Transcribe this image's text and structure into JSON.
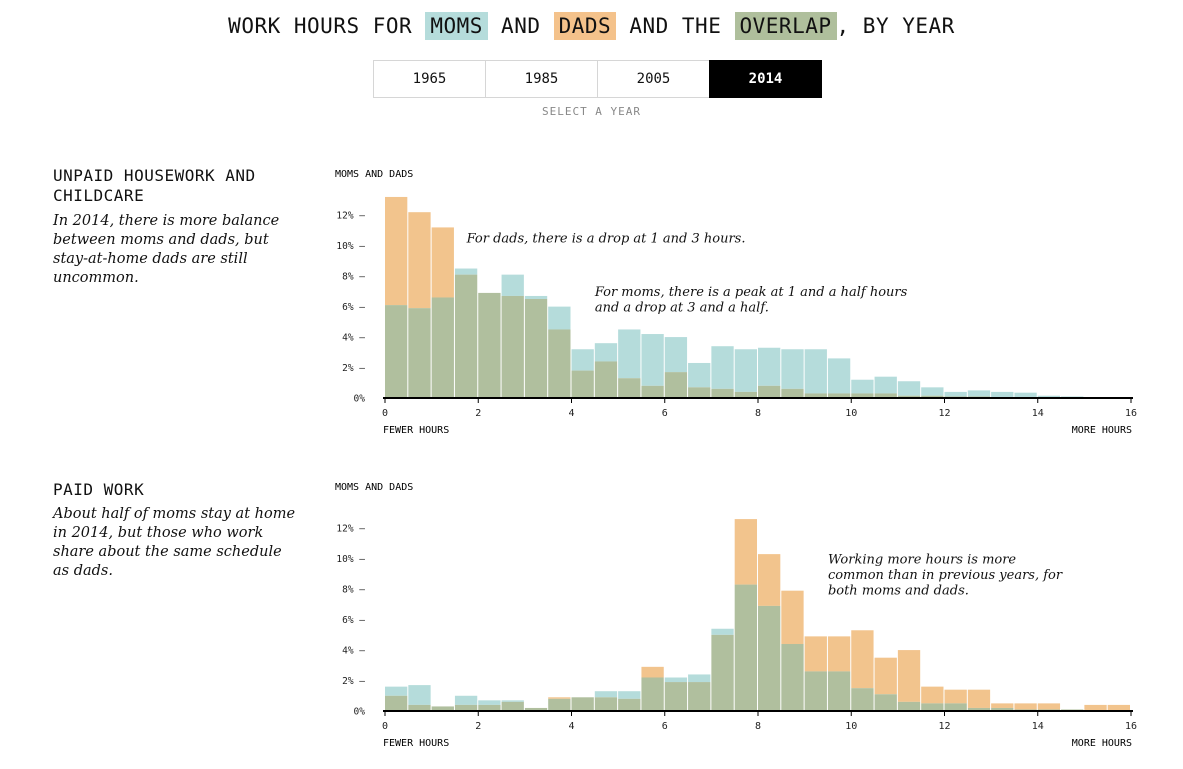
{
  "header": {
    "title_parts": [
      {
        "text": "WORK HOURS FOR ",
        "color": ""
      },
      {
        "text": "MOMS",
        "color": "#b5dcdb"
      },
      {
        "text": " AND ",
        "color": ""
      },
      {
        "text": "DADS",
        "color": "#f4c28b"
      },
      {
        "text": " AND THE ",
        "color": ""
      },
      {
        "text": "OVERLAP",
        "color": "#afbf9c"
      },
      {
        "text": ", BY YEAR",
        "color": ""
      }
    ],
    "years": [
      "1965",
      "1985",
      "2005",
      "2014"
    ],
    "selected_year": "2014",
    "hint": "SELECT A YEAR"
  },
  "colors": {
    "moms": "#b5dcdb",
    "dads": "#f2c48d",
    "overlap": "#b0bf9e"
  },
  "sections": {
    "housework": {
      "title": "UNPAID HOUSEWORK AND CHILDCARE",
      "description": "In 2014, there is more balance between moms and dads, but stay-at-home dads are still uncommon."
    },
    "paid": {
      "title": "PAID WORK",
      "description": "About half of moms stay at home in 2014, but those who work share about the same schedule as dads."
    }
  },
  "chart_data": [
    {
      "type": "bar",
      "chart_label": "MOMS AND DADS",
      "x_start_label": "FEWER HOURS",
      "x_end_label": "MORE HOURS",
      "xlim": [
        0,
        16
      ],
      "ylim": [
        0,
        13
      ],
      "bin_width": 0.5,
      "xticks": [
        0,
        2,
        4,
        6,
        8,
        10,
        12,
        14,
        16
      ],
      "yticks": [
        0,
        2,
        4,
        6,
        8,
        10,
        12
      ],
      "ytick_labels": [
        "0%",
        "2% –",
        "4% –",
        "6% –",
        "8% –",
        "10% –",
        "12% –"
      ],
      "annotations": [
        {
          "lines": [
            "For dads, there is a drop at 1 and 3 hours."
          ],
          "x": 1.75,
          "y": 10.2
        },
        {
          "lines": [
            "For moms, there is a peak at 1 and a half hours",
            "and a drop at 3 and a half."
          ],
          "x": 4.5,
          "y": 6.7
        }
      ],
      "series": [
        {
          "name": "MOMS",
          "values": [
            6.1,
            5.9,
            6.6,
            8.5,
            6.9,
            8.1,
            6.7,
            6.0,
            3.2,
            3.6,
            4.5,
            4.2,
            4.0,
            2.3,
            3.4,
            3.2,
            3.3,
            3.2,
            3.2,
            2.6,
            1.2,
            1.4,
            1.1,
            0.7,
            0.4,
            0.5,
            0.4,
            0.35,
            0.15,
            0.1,
            0.05,
            0.05
          ]
        },
        {
          "name": "DADS",
          "values": [
            13.2,
            12.2,
            11.2,
            8.1,
            6.9,
            6.7,
            6.5,
            4.5,
            1.8,
            2.4,
            1.3,
            0.8,
            1.7,
            0.7,
            0.6,
            0.4,
            0.8,
            0.6,
            0.3,
            0.3,
            0.3,
            0.3,
            0.15,
            0.15,
            0.1,
            0.1,
            0.05,
            0.05,
            0.05,
            0.05,
            0.02,
            0.02
          ]
        }
      ]
    },
    {
      "type": "bar",
      "chart_label": "MOMS AND DADS",
      "x_start_label": "FEWER HOURS",
      "x_end_label": "MORE HOURS",
      "xlim": [
        0,
        16
      ],
      "ylim": [
        0,
        13
      ],
      "bin_width": 0.5,
      "xticks": [
        0,
        2,
        4,
        6,
        8,
        10,
        12,
        14,
        16
      ],
      "yticks": [
        0,
        2,
        4,
        6,
        8,
        10,
        12
      ],
      "ytick_labels": [
        "0%",
        "2% –",
        "4% –",
        "6% –",
        "8% –",
        "10% –",
        "12% –"
      ],
      "annotations": [
        {
          "lines": [
            "Working more hours is more",
            "common than in previous years, for",
            "both moms and dads."
          ],
          "x": 9.5,
          "y": 9.7
        }
      ],
      "series": [
        {
          "name": "MOMS",
          "values": [
            1.6,
            1.7,
            0.3,
            1.0,
            0.7,
            0.7,
            0.2,
            0.8,
            0.9,
            1.3,
            1.3,
            2.2,
            2.2,
            2.4,
            5.4,
            8.3,
            6.9,
            4.4,
            2.6,
            2.6,
            1.5,
            1.1,
            0.6,
            0.5,
            0.5,
            0.2,
            0.2,
            0.1,
            0.1,
            0.1,
            0.05,
            0.05
          ]
        },
        {
          "name": "DADS",
          "values": [
            1.0,
            0.4,
            0.3,
            0.4,
            0.4,
            0.6,
            0.2,
            0.9,
            0.9,
            0.9,
            0.8,
            2.9,
            1.9,
            1.9,
            5.0,
            12.6,
            10.3,
            7.9,
            4.9,
            4.9,
            5.3,
            3.5,
            4.0,
            1.6,
            1.4,
            1.4,
            0.5,
            0.5,
            0.5,
            0.1,
            0.4,
            0.4
          ]
        }
      ]
    }
  ]
}
